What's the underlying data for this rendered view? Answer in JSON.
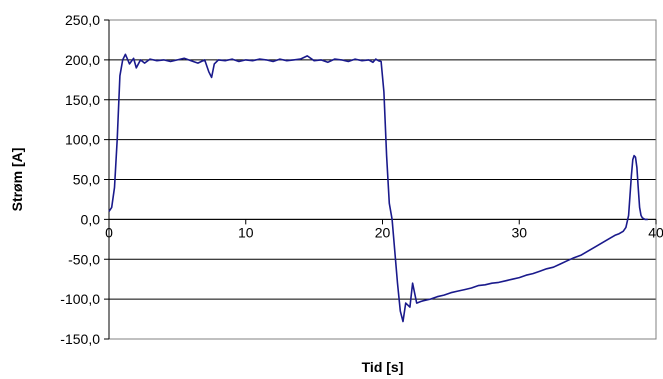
{
  "chart_data": {
    "type": "line",
    "title": "",
    "xlabel": "Tid [s]",
    "ylabel": "Strøm [A]",
    "xlim": [
      0,
      40
    ],
    "ylim": [
      -150,
      250
    ],
    "x_ticks": [
      0,
      10,
      20,
      30,
      40
    ],
    "y_ticks": [
      -150,
      -100,
      -50,
      0,
      50,
      100,
      150,
      200,
      250
    ],
    "x_tick_labels": [
      "0",
      "10",
      "20",
      "30",
      "40"
    ],
    "y_tick_labels": [
      "-150,0",
      "-100,0",
      "-50,0",
      "0,0",
      "50,0",
      "100,0",
      "150,0",
      "200,0",
      "250,0"
    ],
    "grid": "horizontal",
    "legend": "none",
    "series": [
      {
        "color": "#1a1a8c",
        "x": [
          0.0,
          0.2,
          0.4,
          0.6,
          0.8,
          1.0,
          1.2,
          1.5,
          1.8,
          2.0,
          2.3,
          2.6,
          3.0,
          3.5,
          4.0,
          4.5,
          5.0,
          5.5,
          6.0,
          6.5,
          7.0,
          7.3,
          7.5,
          7.7,
          8.0,
          8.5,
          9.0,
          9.5,
          10.0,
          10.5,
          11.0,
          11.5,
          12.0,
          12.5,
          13.0,
          13.5,
          14.0,
          14.5,
          15.0,
          15.5,
          16.0,
          16.5,
          17.0,
          17.5,
          18.0,
          18.5,
          19.0,
          19.3,
          19.5,
          19.7,
          19.9,
          20.1,
          20.3,
          20.5,
          20.7,
          20.9,
          21.1,
          21.3,
          21.5,
          21.7,
          22.0,
          22.2,
          22.5,
          22.8,
          23.0,
          23.5,
          24.0,
          24.5,
          25.0,
          25.5,
          26.0,
          26.5,
          27.0,
          27.5,
          28.0,
          28.5,
          29.0,
          29.5,
          30.0,
          30.5,
          31.0,
          31.5,
          32.0,
          32.5,
          33.0,
          33.5,
          34.0,
          34.5,
          35.0,
          35.5,
          36.0,
          36.5,
          37.0,
          37.3,
          37.6,
          37.8,
          38.0,
          38.1,
          38.2,
          38.3,
          38.4,
          38.5,
          38.6,
          38.7,
          38.8,
          38.9,
          39.0,
          39.2,
          39.4
        ],
        "y": [
          10,
          15,
          40,
          100,
          180,
          200,
          207,
          195,
          202,
          190,
          200,
          196,
          201,
          199,
          200,
          198,
          200,
          202,
          199,
          196,
          200,
          185,
          178,
          195,
          200,
          199,
          201,
          198,
          200,
          199,
          201,
          200,
          198,
          201,
          199,
          200,
          201,
          205,
          199,
          200,
          197,
          201,
          200,
          198,
          201,
          199,
          200,
          197,
          201,
          199,
          198,
          160,
          80,
          20,
          0,
          -40,
          -80,
          -115,
          -128,
          -105,
          -110,
          -80,
          -105,
          -103,
          -102,
          -100,
          -97,
          -95,
          -92,
          -90,
          -88,
          -86,
          -83,
          -82,
          -80,
          -79,
          -77,
          -75,
          -73,
          -70,
          -68,
          -65,
          -62,
          -60,
          -56,
          -52,
          -48,
          -45,
          -40,
          -35,
          -30,
          -25,
          -20,
          -18,
          -15,
          -10,
          5,
          30,
          55,
          75,
          80,
          78,
          65,
          40,
          15,
          5,
          2,
          0,
          0
        ]
      }
    ]
  }
}
